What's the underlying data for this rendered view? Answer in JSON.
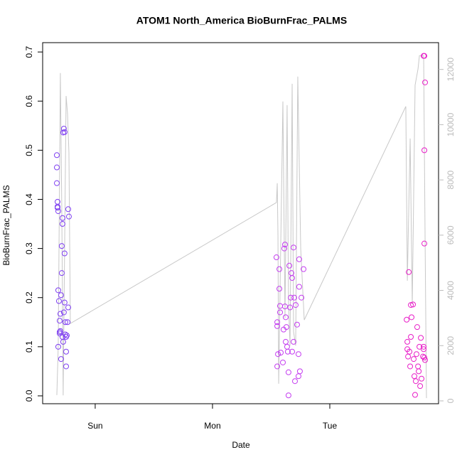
{
  "chart_data": {
    "type": "scatter",
    "title": "ATOM1 North_America BioBurnFrac_PALMS",
    "x_label": "Date",
    "y_label": "BioBurnFrac_PALMS",
    "xlim": [
      -0.448,
      2.927
    ],
    "ylim": [
      -0.016,
      0.719
    ],
    "y2lim": [
      -103,
      12970
    ],
    "xticks": [
      {
        "value": 0,
        "label": "Sun"
      },
      {
        "value": 1,
        "label": "Mon"
      },
      {
        "value": 2,
        "label": "Tue"
      }
    ],
    "yticks": [
      {
        "value": 0,
        "label": "0.0"
      },
      0.1,
      0.2,
      0.3,
      0.4,
      0.5,
      0.6,
      0.7
    ],
    "y2ticks": [
      0,
      2000,
      4000,
      6000,
      8000,
      10000,
      12000
    ],
    "line": {
      "color": "#c8c8c8",
      "axis": "y2",
      "x": [
        -0.327,
        -0.315,
        -0.297,
        -0.285,
        -0.273,
        -0.248,
        -0.236,
        -0.224,
        -0.212,
        1.545,
        1.552,
        1.558,
        1.564,
        1.6,
        1.618,
        1.636,
        1.648,
        1.661,
        1.679,
        1.691,
        1.709,
        1.727,
        1.752,
        1.782,
        2.648,
        2.661,
        2.685,
        2.703,
        2.727,
        2.752,
        2.764,
        2.8,
        2.812,
        2.824
      ],
      "values": [
        210,
        2000,
        11870,
        7000,
        200,
        11040,
        10400,
        9000,
        2800,
        7180,
        7880,
        6000,
        620,
        10840,
        3000,
        10710,
        3500,
        2000,
        11480,
        2500,
        2000,
        11740,
        5500,
        2930,
        10660,
        4350,
        9500,
        3500,
        11430,
        12020,
        12500,
        12500,
        6000,
        100
      ]
    },
    "series": [
      {
        "color": "#7f3ff2",
        "x": [
          -0.327,
          -0.327,
          -0.327,
          -0.321,
          -0.321,
          -0.321,
          -0.315,
          -0.315,
          -0.309,
          -0.315,
          -0.303,
          -0.303,
          -0.303,
          -0.297,
          -0.297,
          -0.291,
          -0.285,
          -0.285,
          -0.279,
          -0.279,
          -0.273,
          -0.267,
          -0.261,
          -0.261,
          -0.267,
          -0.261,
          -0.255,
          -0.248,
          -0.248,
          -0.291,
          -0.273,
          -0.279,
          -0.255,
          -0.248,
          -0.242,
          -0.236,
          -0.23,
          -0.23,
          -0.224
        ],
        "values": [
          0.465,
          0.49,
          0.433,
          0.395,
          0.385,
          0.383,
          0.376,
          0.215,
          0.193,
          0.1,
          0.153,
          0.13,
          0.127,
          0.132,
          0.167,
          0.205,
          0.25,
          0.305,
          0.362,
          0.35,
          0.536,
          0.544,
          0.537,
          0.29,
          0.17,
          0.19,
          0.15,
          0.09,
          0.06,
          0.075,
          0.11,
          0.12,
          0.125,
          0.12,
          0.123,
          0.15,
          0.18,
          0.38,
          0.365
        ]
      },
      {
        "color": "#c43cf0",
        "x": [
          1.545,
          1.552,
          1.552,
          1.552,
          1.558,
          1.57,
          1.57,
          1.576,
          1.576,
          1.582,
          1.6,
          1.606,
          1.612,
          1.618,
          1.618,
          1.624,
          1.624,
          1.63,
          1.636,
          1.642,
          1.648,
          1.648,
          1.655,
          1.661,
          1.667,
          1.673,
          1.679,
          1.679,
          1.691,
          1.691,
          1.697,
          1.703,
          1.709,
          1.721,
          1.733,
          1.733,
          1.739,
          1.739,
          1.745,
          1.758,
          1.776
        ],
        "values": [
          0.282,
          0.15,
          0.142,
          0.06,
          0.085,
          0.218,
          0.258,
          0.17,
          0.183,
          0.088,
          0.068,
          0.135,
          0.3,
          0.308,
          0.182,
          0.16,
          0.11,
          0.14,
          0.1,
          0.09,
          0.001,
          0.048,
          0.265,
          0.18,
          0.2,
          0.25,
          0.24,
          0.09,
          0.302,
          0.11,
          0.2,
          0.03,
          0.185,
          0.145,
          0.04,
          0.085,
          0.222,
          0.278,
          0.05,
          0.2,
          0.258
        ]
      },
      {
        "color": "#e81ec8",
        "x": [
          2.655,
          2.661,
          2.661,
          2.667,
          2.673,
          2.679,
          2.685,
          2.691,
          2.691,
          2.697,
          2.709,
          2.715,
          2.721,
          2.727,
          2.733,
          2.739,
          2.745,
          2.752,
          2.758,
          2.764,
          2.77,
          2.776,
          2.782,
          2.8,
          2.806,
          2.812,
          2.806,
          2.806,
          2.8,
          2.8,
          2.806,
          2.812,
          2.794
        ],
        "values": [
          0.155,
          0.11,
          0.095,
          0.08,
          0.252,
          0.09,
          0.06,
          0.12,
          0.185,
          0.16,
          0.186,
          0.075,
          0.04,
          0.002,
          0.03,
          0.085,
          0.14,
          0.06,
          0.05,
          0.1,
          0.02,
          0.118,
          0.035,
          0.692,
          0.692,
          0.638,
          0.5,
          0.31,
          0.1,
          0.095,
          0.078,
          0.073,
          0.08
        ]
      }
    ]
  }
}
